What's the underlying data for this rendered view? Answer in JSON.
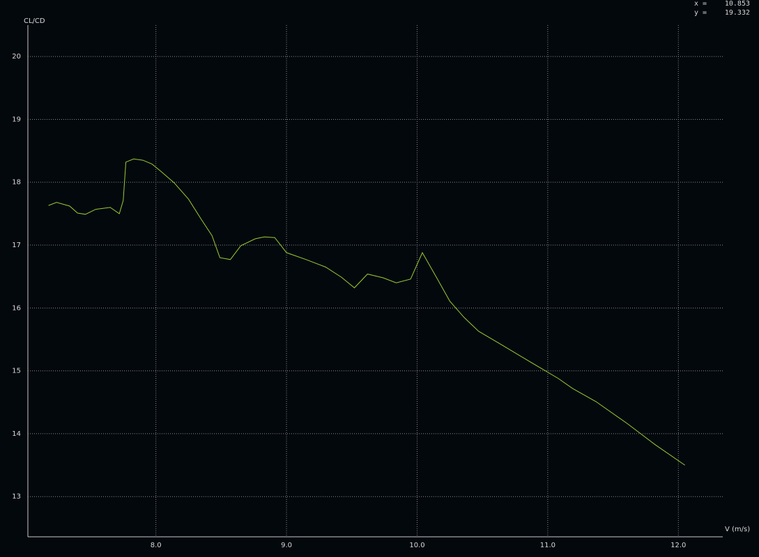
{
  "chart_data": {
    "type": "line",
    "xlabel": "V (m/s)",
    "ylabel": "CL/CD",
    "x": [
      7.178,
      7.24,
      7.34,
      7.4,
      7.46,
      7.54,
      7.65,
      7.72,
      7.75,
      7.77,
      7.83,
      7.9,
      7.97,
      8.04,
      8.14,
      8.25,
      8.35,
      8.43,
      8.49,
      8.57,
      8.65,
      8.76,
      8.83,
      8.91,
      9.0,
      9.15,
      9.3,
      9.42,
      9.52,
      9.62,
      9.74,
      9.84,
      9.95,
      10.04,
      10.15,
      10.25,
      10.36,
      10.47,
      10.65,
      10.86,
      11.08,
      11.19,
      11.37,
      11.61,
      11.82,
      12.05
    ],
    "series": [
      {
        "color": "#9acd32",
        "values": [
          17.63,
          17.68,
          17.62,
          17.51,
          17.49,
          17.57,
          17.6,
          17.5,
          17.71,
          18.32,
          18.37,
          18.35,
          18.29,
          18.17,
          17.99,
          17.73,
          17.4,
          17.15,
          16.8,
          16.77,
          16.99,
          17.1,
          17.13,
          17.12,
          16.88,
          16.77,
          16.65,
          16.49,
          16.32,
          16.54,
          16.48,
          16.4,
          16.46,
          16.88,
          16.48,
          16.11,
          15.85,
          15.63,
          15.41,
          15.15,
          14.88,
          14.72,
          14.51,
          14.16,
          13.83,
          13.5
        ]
      }
    ],
    "xlim": [
      7.02,
      12.34
    ],
    "ylim": [
      12.36,
      20.5
    ],
    "xticks": [
      {
        "value": 8,
        "label": "8.0"
      },
      {
        "value": 9,
        "label": "9.0"
      },
      {
        "value": 10,
        "label": "10.0"
      },
      {
        "value": 11,
        "label": "11.0"
      },
      {
        "value": 12,
        "label": "12.0"
      }
    ],
    "yticks": [
      13,
      14,
      15,
      16,
      17,
      18,
      19,
      20
    ],
    "grid": true,
    "readout": [
      {
        "label": "x =",
        "value": 10.853
      },
      {
        "label": "y =",
        "value": 19.332
      }
    ]
  }
}
